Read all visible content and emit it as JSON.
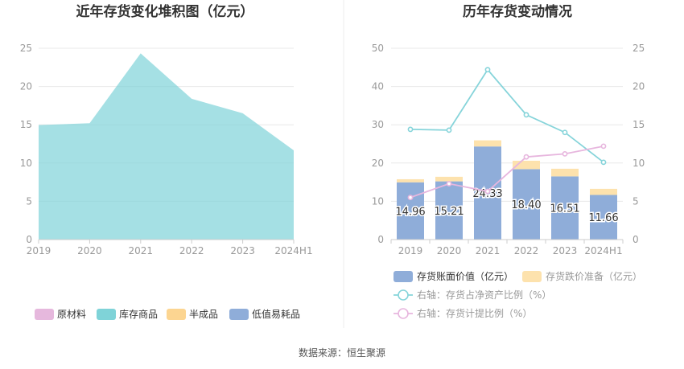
{
  "left_chart": {
    "title": "近年存货变化堆积图（亿元）",
    "chart_data": {
      "type": "area",
      "title": "近年存货变化堆积图（亿元）",
      "x": [
        "2019",
        "2020",
        "2021",
        "2022",
        "2023",
        "2024H1"
      ],
      "ylim": [
        0,
        25
      ],
      "yticks": [
        "0",
        "5",
        "10",
        "15",
        "20",
        "25"
      ],
      "grid": true,
      "legend_position": "bottom",
      "series": [
        {
          "name": "原材料",
          "color": "#e6b8dd",
          "values": [
            0,
            0,
            0,
            0,
            0,
            0
          ]
        },
        {
          "name": "库存商品",
          "color": "#7fd3d8",
          "values": [
            14.96,
            15.21,
            24.33,
            18.4,
            16.51,
            11.66
          ]
        },
        {
          "name": "半成品",
          "color": "#fcd591",
          "values": [
            0,
            0,
            0,
            0,
            0,
            0
          ]
        },
        {
          "name": "低值易耗品",
          "color": "#8fadd9",
          "values": [
            0,
            0,
            0,
            0,
            0,
            0
          ]
        }
      ]
    }
  },
  "right_chart": {
    "title": "历年存货变动情况",
    "chart_data": {
      "type": "bar",
      "title": "历年存货变动情况",
      "categories": [
        "2019",
        "2020",
        "2021",
        "2022",
        "2023",
        "2024H1"
      ],
      "ylim_left": [
        0,
        50
      ],
      "yticks_left": [
        "0",
        "10",
        "20",
        "30",
        "40",
        "50"
      ],
      "ylim_right": [
        0,
        25
      ],
      "yticks_right": [
        "0",
        "5",
        "10",
        "15",
        "20",
        "25"
      ],
      "grid": true,
      "legend_position": "bottom",
      "series": [
        {
          "name": "存货账面价值（亿元）",
          "type": "bar",
          "axis": "left",
          "color": "#8fadd9",
          "values": [
            14.96,
            15.21,
            24.33,
            18.4,
            16.51,
            11.66
          ],
          "labels": [
            "14.96",
            "15.21",
            "24.33",
            "18.40",
            "16.51",
            "11.66"
          ]
        },
        {
          "name": "存货跌价准备（亿元）",
          "type": "bar",
          "stacked": true,
          "axis": "left",
          "color": "#fde2ad",
          "values": [
            0.8,
            1.2,
            1.6,
            2.2,
            2.0,
            1.6
          ]
        },
        {
          "name": "右轴：存货占净资产比例（%）",
          "type": "line",
          "axis": "right",
          "color": "#86d4da",
          "values": [
            14.4,
            14.3,
            22.2,
            16.3,
            14.0,
            10.1
          ]
        },
        {
          "name": "右轴：存货计提比例（%）",
          "type": "line",
          "axis": "right",
          "color": "#e7b6de",
          "values": [
            5.5,
            7.3,
            6.3,
            10.8,
            11.2,
            12.2
          ]
        }
      ]
    }
  },
  "footer": {
    "source": "数据来源：恒生聚源"
  }
}
